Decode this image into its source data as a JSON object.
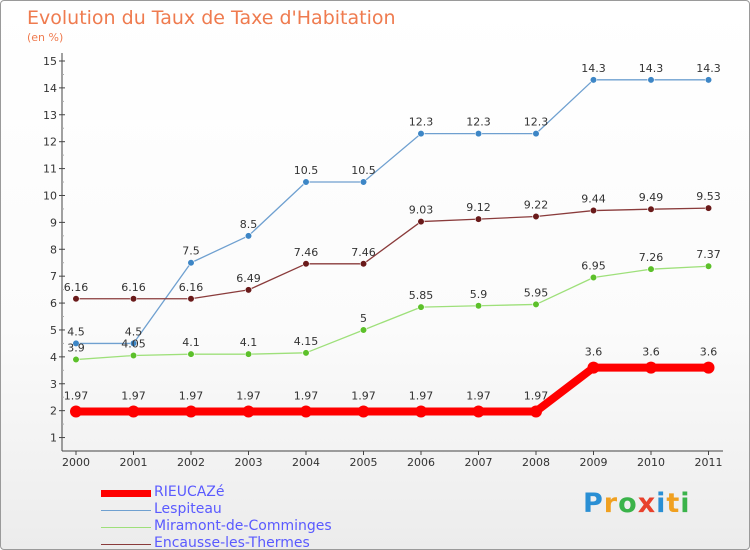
{
  "title": "Evolution du Taux de Taxe d'Habitation",
  "subtitle": "(en %)",
  "logo": {
    "text": "Proxiti",
    "letters": [
      {
        "ch": "P",
        "color": "#2a8fd4"
      },
      {
        "ch": "r",
        "color": "#f0a020"
      },
      {
        "ch": "o",
        "color": "#3ab34a"
      },
      {
        "ch": "x",
        "color": "#e8412c"
      },
      {
        "ch": "i",
        "color": "#2a8fd4"
      },
      {
        "ch": "t",
        "color": "#f0a020"
      },
      {
        "ch": "i",
        "color": "#3ab34a"
      }
    ]
  },
  "chart_data": {
    "type": "line",
    "title": "Evolution du Taux de Taxe d'Habitation",
    "ylabel": "(en %)",
    "x": [
      "2000",
      "2001",
      "2002",
      "2003",
      "2004",
      "2005",
      "2006",
      "2007",
      "2008",
      "2009",
      "2010",
      "2011"
    ],
    "y_ticks": [
      "1",
      "2",
      "3",
      "4",
      "5",
      "6",
      "7",
      "8",
      "9",
      "10",
      "11",
      "12",
      "13",
      "14",
      "15"
    ],
    "ylim": [
      0.5,
      15
    ],
    "grid": false,
    "legend_position": "bottom-left",
    "series": [
      {
        "name": "RIEUCAZé",
        "color": "#ff0000",
        "style": "thick",
        "values": [
          1.97,
          1.97,
          1.97,
          1.97,
          1.97,
          1.97,
          1.97,
          1.97,
          1.97,
          3.6,
          3.6,
          3.6
        ],
        "labels": [
          "1.97",
          "1.97",
          "1.97",
          "1.97",
          "1.97",
          "1.97",
          "1.97",
          "1.97",
          "1.97",
          "3.6",
          "3.6",
          "3.6"
        ]
      },
      {
        "name": "Lespiteau",
        "color": "#6fa0d0",
        "marker": "#3d86c6",
        "values": [
          4.5,
          4.5,
          7.5,
          8.5,
          10.5,
          10.5,
          12.3,
          12.3,
          12.3,
          14.3,
          14.3,
          14.3
        ],
        "labels": [
          "4.5",
          "4.5",
          "7.5",
          "8.5",
          "10.5",
          "10.5",
          "12.3",
          "12.3",
          "12.3",
          "14.3",
          "14.3",
          "14.3"
        ]
      },
      {
        "name": "Miramont-de-Comminges",
        "color": "#9ee07a",
        "marker": "#5cc02a",
        "values": [
          3.9,
          4.05,
          4.1,
          4.1,
          4.15,
          5,
          5.85,
          5.9,
          5.95,
          6.95,
          7.26,
          7.37
        ],
        "labels": [
          "3.9",
          "4.05",
          "4.1",
          "4.1",
          "4.15",
          "5",
          "5.85",
          "5.9",
          "5.95",
          "6.95",
          "7.26",
          "7.37"
        ]
      },
      {
        "name": "Encausse-les-Thermes",
        "color": "#8a3b3b",
        "marker": "#6a1a1a",
        "values": [
          6.16,
          6.16,
          6.16,
          6.49,
          7.46,
          7.46,
          9.03,
          9.12,
          9.22,
          9.44,
          9.49,
          9.53
        ],
        "labels": [
          "6.16",
          "6.16",
          "6.16",
          "6.49",
          "7.46",
          "7.46",
          "9.03",
          "9.12",
          "9.22",
          "9.44",
          "9.49",
          "9.53"
        ]
      }
    ]
  }
}
